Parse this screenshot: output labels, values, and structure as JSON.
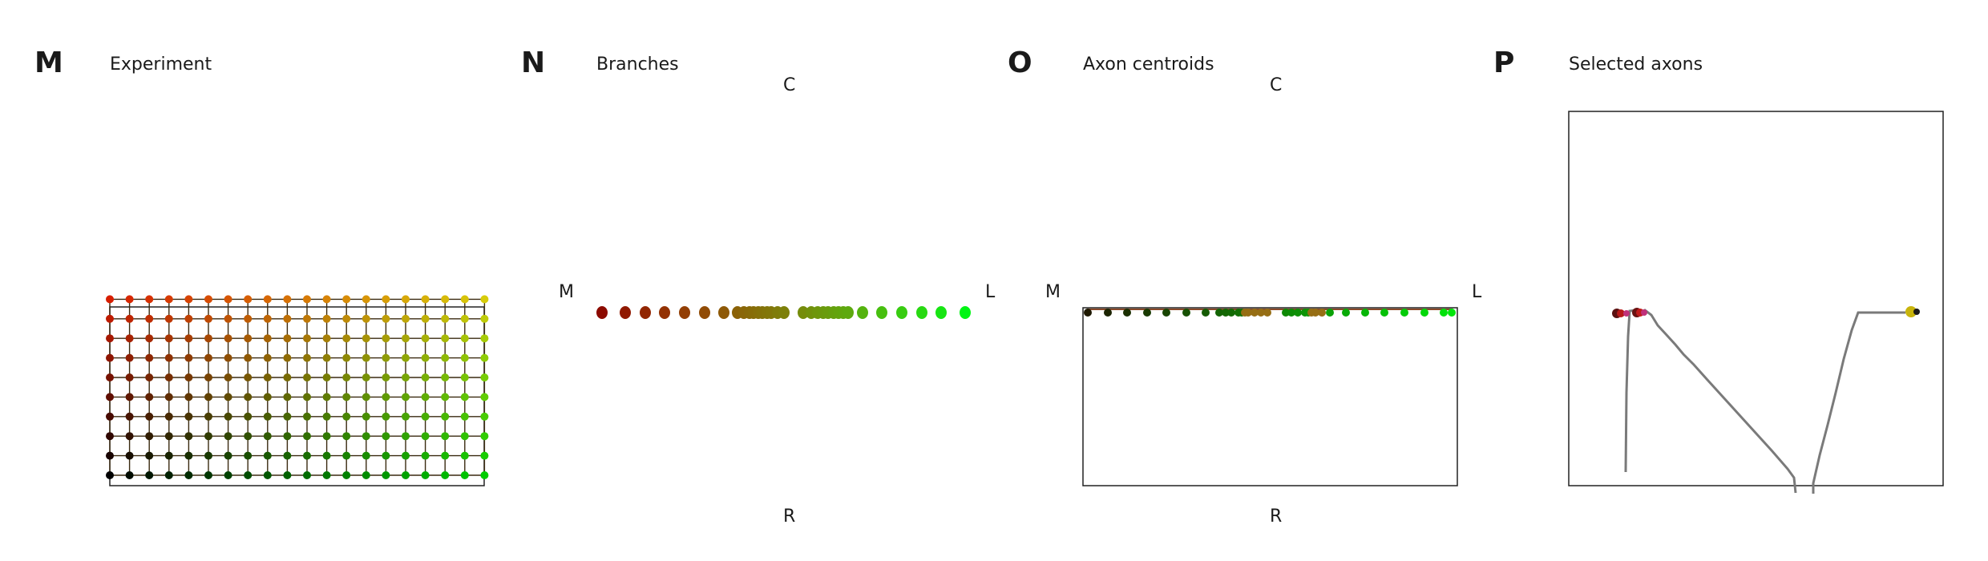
{
  "panels": {
    "m": {
      "letter": "M",
      "title": "Experiment"
    },
    "n": {
      "letter": "N",
      "title": "Branches",
      "top": "C",
      "bottom": "R",
      "left": "M",
      "right": "L"
    },
    "o": {
      "letter": "O",
      "title": "Axon centroids",
      "top": "C",
      "bottom": "R",
      "left": "M",
      "right": "L"
    },
    "p": {
      "letter": "P",
      "title": "Selected axons"
    }
  },
  "grid": {
    "columns": 20,
    "rows": 10
  },
  "colors": {
    "frame": "#222222",
    "trace": "#7a7a7a",
    "magenta": "#c0307a"
  }
}
